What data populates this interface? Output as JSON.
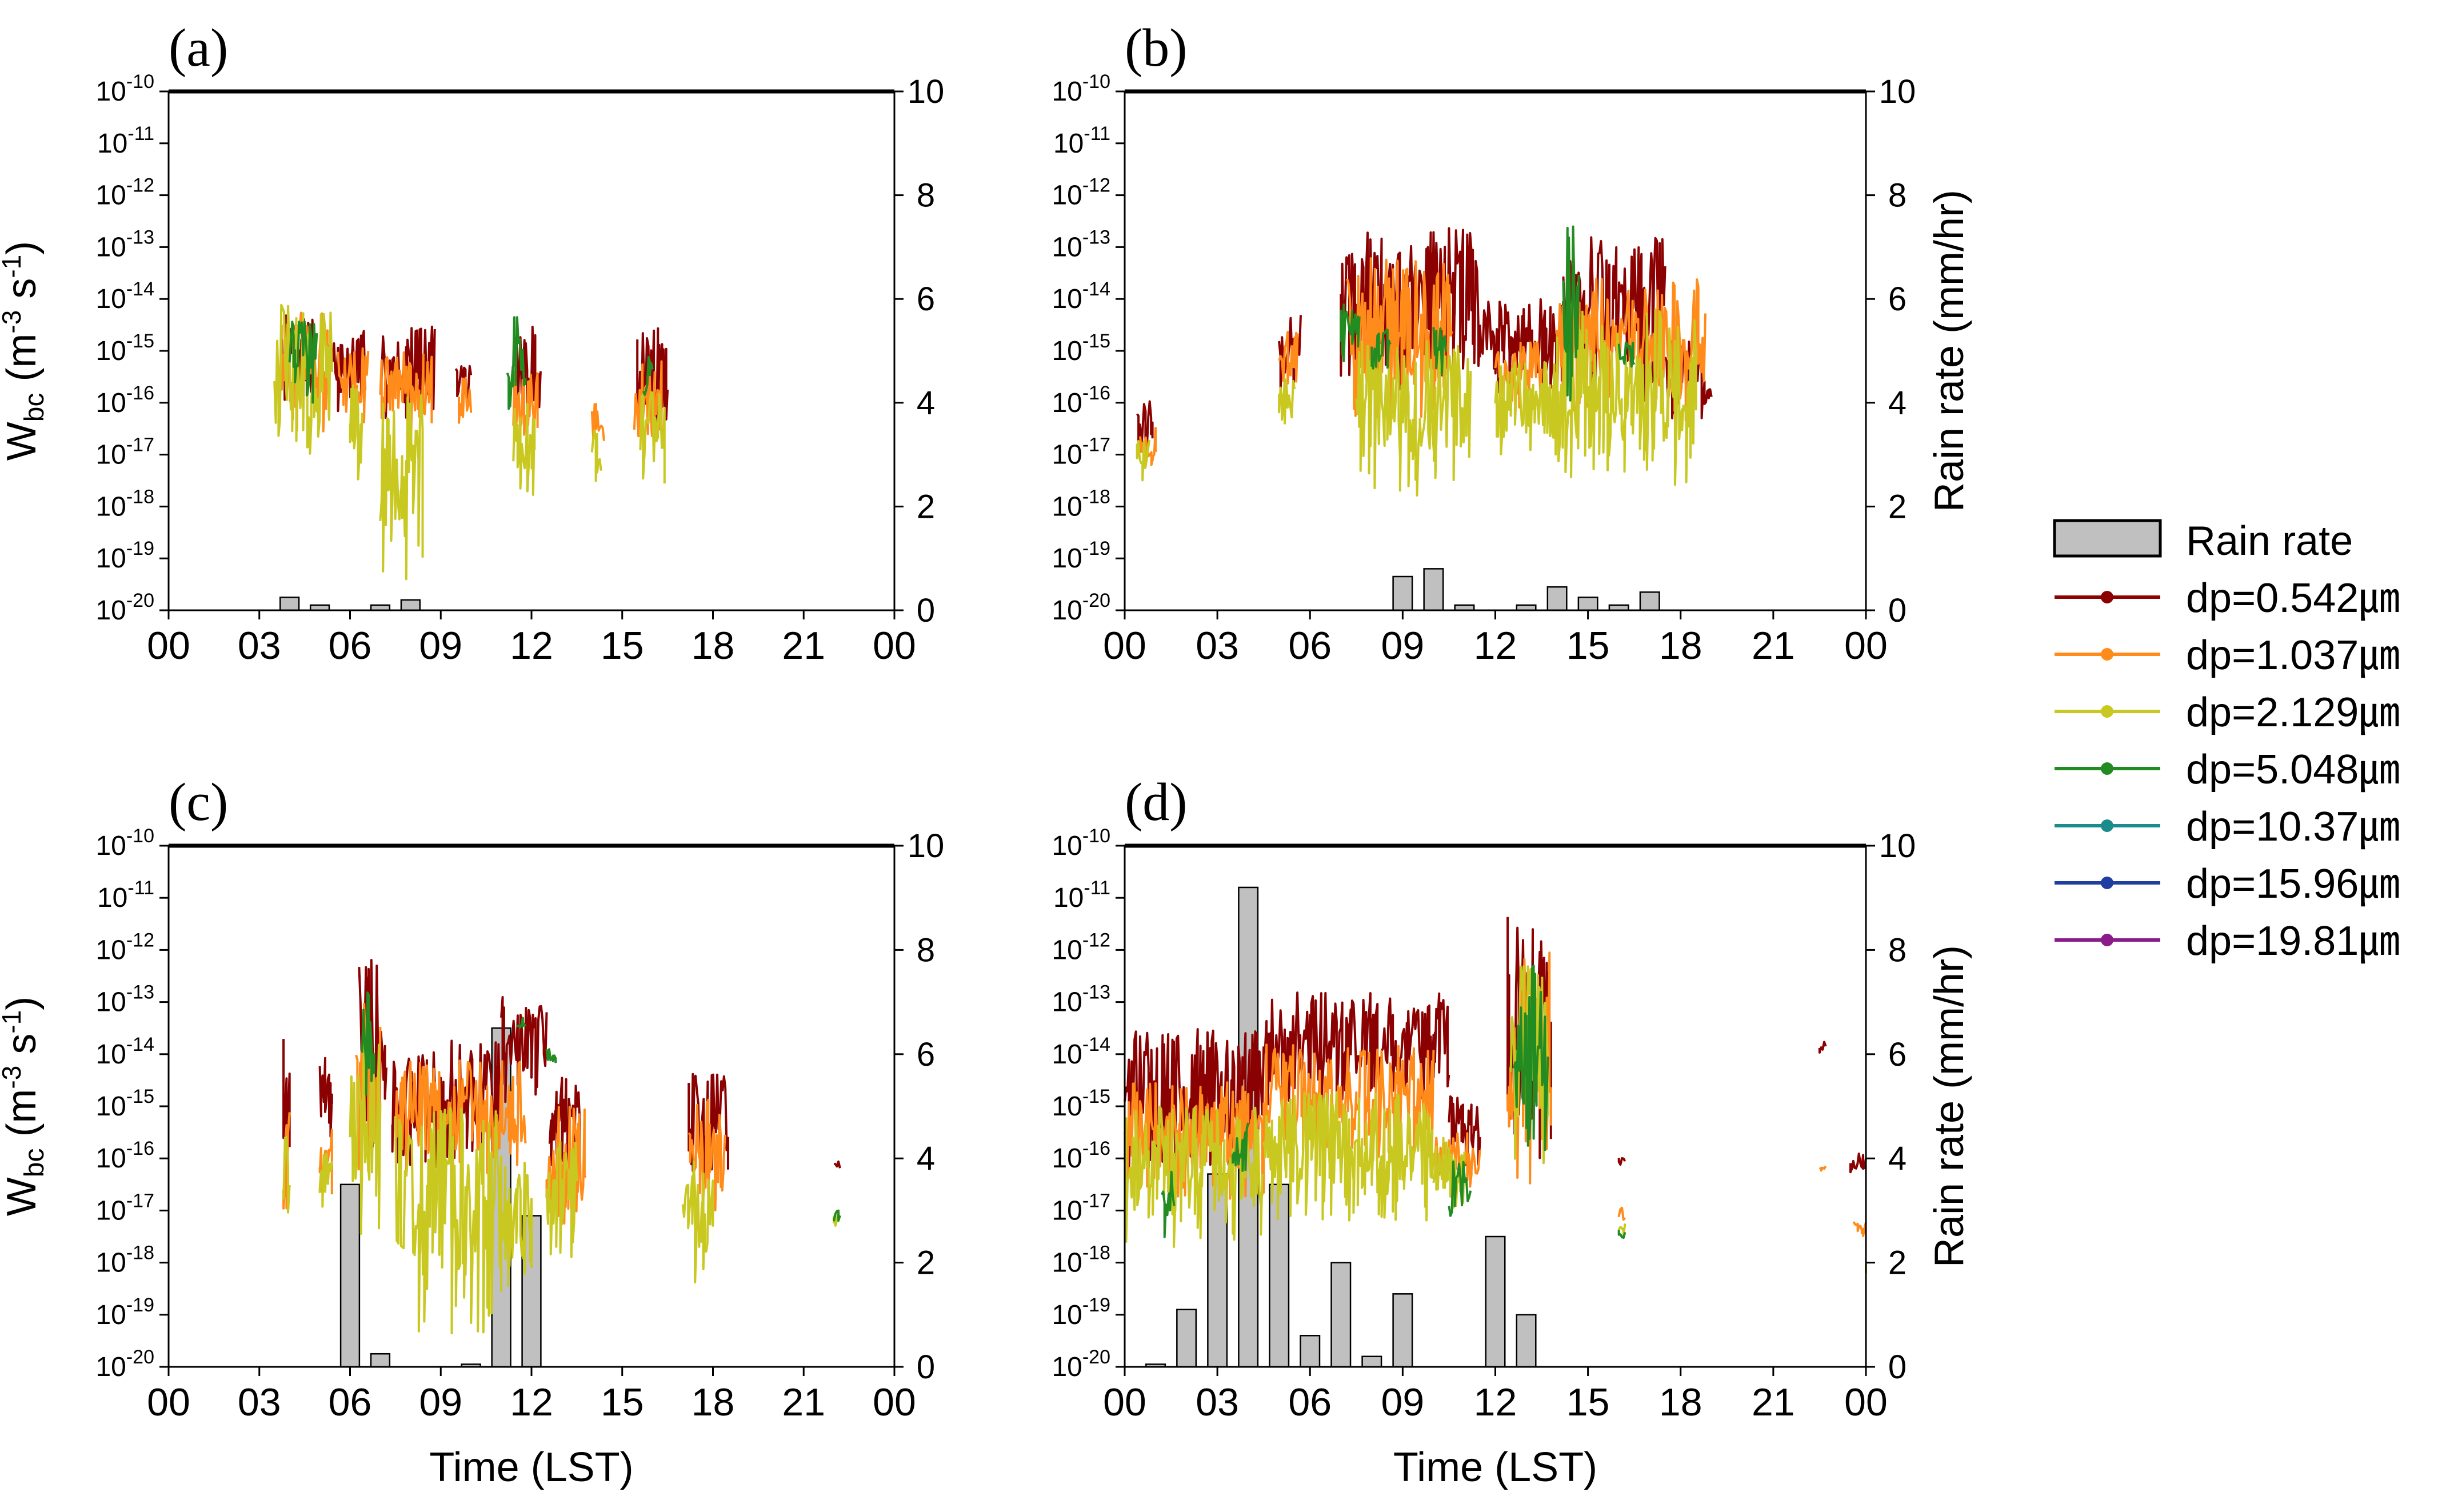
{
  "figure": {
    "legend": [
      {
        "label": "Rain rate",
        "color": "#c0c0c0",
        "kind": "bar"
      },
      {
        "label": "dp=0.542㎛",
        "color": "#8b0000",
        "kind": "line"
      },
      {
        "label": "dp=1.037㎛",
        "color": "#ff8c1a",
        "kind": "line"
      },
      {
        "label": "dp=2.129㎛",
        "color": "#c8c820",
        "kind": "line"
      },
      {
        "label": "dp=5.048㎛",
        "color": "#228b22",
        "kind": "line"
      },
      {
        "label": "dp=10.37㎛",
        "color": "#1a8c8c",
        "kind": "line"
      },
      {
        "label": "dp=15.96㎛",
        "color": "#1f3fa0",
        "kind": "line"
      },
      {
        "label": "dp=19.81㎛",
        "color": "#8b1a8b",
        "kind": "line"
      }
    ]
  },
  "chart_data": [
    {
      "type": "line+bar",
      "panel_label": "(a)",
      "ylabel_left": "W",
      "ylabel_left_sub": "bc",
      "ylabel_left_units": " (m",
      "ylabel_left_sup1": "-3",
      "ylabel_left_mid": " s",
      "ylabel_left_sup2": "-1",
      "ylabel_left_end": ")",
      "ylabel_right": "",
      "xlabel": "",
      "x_ticks": [
        "00",
        "03",
        "06",
        "09",
        "12",
        "15",
        "18",
        "21",
        "00"
      ],
      "y_left_log_range": [
        -20,
        -10
      ],
      "y_left_ticks": [
        "10",
        "10",
        "10",
        "10",
        "10",
        "10",
        "10",
        "10",
        "10",
        "10",
        "10"
      ],
      "y_left_exponents": [
        "-20",
        "-19",
        "-18",
        "-17",
        "-16",
        "-15",
        "-14",
        "-13",
        "-12",
        "-11",
        "-10"
      ],
      "y_right_range": [
        0,
        10
      ],
      "y_right_ticks": [
        "0",
        "2",
        "4",
        "6",
        "8",
        "10"
      ],
      "rain_rate": {
        "hours": [
          4,
          5,
          7,
          8
        ],
        "values": [
          0.25,
          0.1,
          0.1,
          0.2
        ]
      },
      "series": [
        {
          "name": "dp=0.542㎛",
          "segments": [
            [
              3.7,
              4.8,
              -16.0,
              -14.3
            ],
            [
              5.2,
              6.5,
              -16.2,
              -14.6
            ],
            [
              7.0,
              8.8,
              -16.3,
              -14.5
            ],
            [
              9.5,
              10.0,
              -16.2,
              -15.2
            ],
            [
              11.5,
              12.3,
              -16.5,
              -14.5
            ],
            [
              15.5,
              16.5,
              -16.8,
              -14.5
            ]
          ]
        },
        {
          "name": "dp=1.037㎛",
          "segments": [
            [
              3.6,
              5.3,
              -16.6,
              -14.2
            ],
            [
              5.6,
              6.6,
              -16.4,
              -14.9
            ],
            [
              7.0,
              8.7,
              -16.8,
              -15.0
            ],
            [
              9.6,
              10.0,
              -16.5,
              -15.5
            ],
            [
              11.4,
              12.2,
              -16.9,
              -15.4
            ],
            [
              14.0,
              14.4,
              -17.0,
              -16.0
            ],
            [
              15.4,
              16.3,
              -17.2,
              -15.1
            ]
          ]
        },
        {
          "name": "dp=2.129㎛",
          "segments": [
            [
              3.5,
              5.4,
              -17.2,
              -14.0
            ],
            [
              6.0,
              6.4,
              -17.5,
              -15.6
            ],
            [
              7.0,
              8.4,
              -19.5,
              -15.8
            ],
            [
              11.4,
              12.1,
              -17.8,
              -16.0
            ],
            [
              14.0,
              14.3,
              -17.6,
              -16.5
            ],
            [
              15.6,
              16.4,
              -17.6,
              -15.7
            ]
          ]
        },
        {
          "name": "dp=5.048㎛",
          "segments": [
            [
              4.0,
              4.9,
              -16.2,
              -14.4
            ],
            [
              11.2,
              11.8,
              -16.2,
              -14.3
            ],
            [
              15.7,
              16.0,
              -16.1,
              -15.1
            ]
          ]
        }
      ]
    },
    {
      "type": "line+bar",
      "panel_label": "(b)",
      "ylabel_left": "",
      "ylabel_right": "Rain rate (mm/hr)",
      "xlabel": "",
      "x_ticks": [
        "00",
        "03",
        "06",
        "09",
        "12",
        "15",
        "18",
        "21",
        "00"
      ],
      "y_left_log_range": [
        -20,
        -10
      ],
      "y_left_ticks": [
        "10",
        "10",
        "10",
        "10",
        "10",
        "10",
        "10",
        "10",
        "10",
        "10",
        "10"
      ],
      "y_left_exponents": [
        "-20",
        "-19",
        "-18",
        "-17",
        "-16",
        "-15",
        "-14",
        "-13",
        "-12",
        "-11",
        "-10"
      ],
      "y_right_range": [
        0,
        10
      ],
      "y_right_ticks": [
        "0",
        "2",
        "4",
        "6",
        "8",
        "10"
      ],
      "rain_rate": {
        "hours": [
          9,
          10,
          11,
          13,
          14,
          15,
          16,
          17
        ],
        "values": [
          0.65,
          0.8,
          0.1,
          0.1,
          0.45,
          0.25,
          0.1,
          0.35
        ]
      },
      "series": [
        {
          "name": "dp=0.542㎛",
          "segments": [
            [
              0.4,
              0.9,
              -17.0,
              -15.9
            ],
            [
              5.0,
              5.7,
              -15.8,
              -14.3
            ],
            [
              7.0,
              11.5,
              -15.8,
              -12.6
            ],
            [
              11.5,
              14.2,
              -15.8,
              -14.0
            ],
            [
              14.2,
              17.5,
              -16.0,
              -12.8
            ],
            [
              17.5,
              19.0,
              -16.4,
              -14.8
            ]
          ]
        },
        {
          "name": "dp=1.037㎛",
          "segments": [
            [
              0.5,
              1.0,
              -17.4,
              -16.4
            ],
            [
              5.0,
              5.6,
              -16.0,
              -14.6
            ],
            [
              7.2,
              10.6,
              -16.4,
              -13.2
            ],
            [
              12.0,
              13.5,
              -16.2,
              -14.8
            ],
            [
              14.0,
              18.8,
              -16.4,
              -13.6
            ]
          ]
        },
        {
          "name": "dp=2.129㎛",
          "segments": [
            [
              0.4,
              0.8,
              -17.5,
              -16.6
            ],
            [
              5.0,
              5.5,
              -16.6,
              -15.5
            ],
            [
              7.5,
              11.2,
              -17.8,
              -14.8
            ],
            [
              12.0,
              14.0,
              -17.0,
              -15.2
            ],
            [
              14.0,
              18.5,
              -17.6,
              -14.2
            ]
          ]
        },
        {
          "name": "dp=5.048㎛",
          "segments": [
            [
              7.0,
              7.6,
              -15.2,
              -14.0
            ],
            [
              8.0,
              8.6,
              -15.4,
              -14.5
            ],
            [
              10.0,
              10.4,
              -15.6,
              -14.5
            ],
            [
              14.2,
              14.7,
              -16.0,
              -12.6
            ],
            [
              16.0,
              16.5,
              -15.5,
              -14.8
            ]
          ]
        }
      ]
    },
    {
      "type": "line+bar",
      "panel_label": "(c)",
      "ylabel_left": "W",
      "ylabel_left_sub": "bc",
      "ylabel_left_units": " (m",
      "ylabel_left_sup1": "-3",
      "ylabel_left_mid": " s",
      "ylabel_left_sup2": "-1",
      "ylabel_left_end": ")",
      "ylabel_right": "",
      "xlabel": "Time (LST)",
      "x_ticks": [
        "00",
        "03",
        "06",
        "09",
        "12",
        "15",
        "18",
        "21",
        "00"
      ],
      "y_left_log_range": [
        -20,
        -10
      ],
      "y_left_ticks": [
        "10",
        "10",
        "10",
        "10",
        "10",
        "10",
        "10",
        "10",
        "10",
        "10",
        "10"
      ],
      "y_left_exponents": [
        "-20",
        "-19",
        "-18",
        "-17",
        "-16",
        "-15",
        "-14",
        "-13",
        "-12",
        "-11",
        "-10"
      ],
      "y_right_range": [
        0,
        10
      ],
      "y_right_ticks": [
        "0",
        "2",
        "4",
        "6",
        "8",
        "10"
      ],
      "rain_rate": {
        "hours": [
          6,
          7,
          10,
          11,
          12
        ],
        "values": [
          3.5,
          0.25,
          0.05,
          6.5,
          2.9
        ]
      },
      "series": [
        {
          "name": "dp=0.542㎛",
          "segments": [
            [
              3.8,
              4.0,
              -16.3,
              -13.7
            ],
            [
              5.0,
              5.4,
              -15.7,
              -13.9
            ],
            [
              6.3,
              7.2,
              -15.8,
              -12.0
            ],
            [
              7.4,
              11.0,
              -16.2,
              -13.7
            ],
            [
              11.0,
              12.5,
              -15.0,
              -12.9
            ],
            [
              12.6,
              13.6,
              -16.2,
              -14.4
            ],
            [
              17.2,
              18.5,
              -16.8,
              -14.3
            ],
            [
              22.0,
              22.2,
              -16.3,
              -16.0
            ]
          ]
        },
        {
          "name": "dp=1.037㎛",
          "segments": [
            [
              3.8,
              4.0,
              -17.2,
              -15.1
            ],
            [
              5.0,
              5.4,
              -16.7,
              -15.4
            ],
            [
              6.2,
              7.0,
              -16.5,
              -12.8
            ],
            [
              7.5,
              11.8,
              -16.4,
              -14.1
            ],
            [
              12.5,
              13.8,
              -17.4,
              -15.0
            ],
            [
              17.2,
              18.4,
              -17.2,
              -14.8
            ]
          ]
        },
        {
          "name": "dp=2.129㎛",
          "segments": [
            [
              3.8,
              4.0,
              -17.4,
              -15.5
            ],
            [
              5.0,
              5.4,
              -17.0,
              -15.9
            ],
            [
              6.0,
              7.0,
              -17.5,
              -13.8
            ],
            [
              7.5,
              11.0,
              -19.4,
              -15.0
            ],
            [
              11.0,
              12.0,
              -18.5,
              -16.0
            ],
            [
              12.5,
              13.5,
              -17.9,
              -15.6
            ],
            [
              17.0,
              18.0,
              -18.4,
              -16.0
            ],
            [
              22.0,
              22.2,
              -17.3,
              -17.0
            ]
          ]
        },
        {
          "name": "dp=5.048㎛",
          "segments": [
            [
              6.4,
              6.8,
              -14.8,
              -12.5
            ],
            [
              11.5,
              11.8,
              -13.6,
              -13.3
            ],
            [
              12.5,
              12.8,
              -14.2,
              -13.9
            ],
            [
              22.0,
              22.2,
              -17.2,
              -17.0
            ]
          ]
        }
      ]
    },
    {
      "type": "line+bar",
      "panel_label": "(d)",
      "ylabel_left": "",
      "ylabel_right": "Rain rate (mm/hr)",
      "xlabel": "Time (LST)",
      "x_ticks": [
        "00",
        "03",
        "06",
        "09",
        "12",
        "15",
        "18",
        "21",
        "00"
      ],
      "y_left_log_range": [
        -20,
        -10
      ],
      "y_left_ticks": [
        "10",
        "10",
        "10",
        "10",
        "10",
        "10",
        "10",
        "10",
        "10",
        "10",
        "10"
      ],
      "y_left_exponents": [
        "-20",
        "-19",
        "-18",
        "-17",
        "-16",
        "-15",
        "-14",
        "-13",
        "-12",
        "-11",
        "-10"
      ],
      "y_right_range": [
        0,
        10
      ],
      "y_right_ticks": [
        "0",
        "2",
        "4",
        "6",
        "8",
        "10"
      ],
      "rain_rate": {
        "hours": [
          1,
          2,
          3,
          4,
          5,
          6,
          7,
          8,
          9,
          12,
          13
        ],
        "values": [
          0.05,
          1.1,
          3.7,
          9.2,
          3.5,
          0.6,
          2.0,
          0.2,
          1.4,
          2.5,
          1.0
        ]
      },
      "series": [
        {
          "name": "dp=0.542㎛",
          "segments": [
            [
              0.0,
              4.5,
              -16.5,
              -13.5
            ],
            [
              4.5,
              10.5,
              -15.0,
              -12.8
            ],
            [
              10.5,
              11.5,
              -16.2,
              -14.8
            ],
            [
              12.4,
              13.8,
              -16.0,
              -11.3
            ],
            [
              16.0,
              16.2,
              -16.2,
              -15.9
            ],
            [
              22.5,
              22.7,
              -14.0,
              -13.7
            ],
            [
              23.5,
              24.0,
              -16.3,
              -15.9
            ]
          ]
        },
        {
          "name": "dp=1.037㎛",
          "segments": [
            [
              0.0,
              4.5,
              -16.8,
              -14.5
            ],
            [
              4.5,
              10.0,
              -16.0,
              -13.8
            ],
            [
              10.0,
              11.5,
              -16.6,
              -15.5
            ],
            [
              12.4,
              13.8,
              -16.5,
              -12.0
            ],
            [
              16.0,
              16.2,
              -17.3,
              -16.9
            ],
            [
              22.5,
              22.7,
              -16.3,
              -16.0
            ],
            [
              23.6,
              24.0,
              -17.5,
              -17.2
            ]
          ]
        },
        {
          "name": "dp=2.129㎛",
          "segments": [
            [
              0.0,
              4.5,
              -17.7,
              -15.0
            ],
            [
              4.5,
              10.0,
              -17.2,
              -14.7
            ],
            [
              10.0,
              11.0,
              -17.0,
              -15.6
            ],
            [
              12.5,
              13.7,
              -16.2,
              -12.3
            ],
            [
              16.0,
              16.2,
              -17.5,
              -17.2
            ],
            [
              24.0,
              24.0,
              -18.2,
              -18.0
            ]
          ]
        },
        {
          "name": "dp=5.048㎛",
          "segments": [
            [
              1.2,
              1.6,
              -17.6,
              -16.2
            ],
            [
              3.5,
              4.0,
              -16.5,
              -15.3
            ],
            [
              10.5,
              11.2,
              -17.6,
              -16.0
            ],
            [
              12.6,
              13.7,
              -16.2,
              -12.3
            ],
            [
              16.0,
              16.2,
              -17.6,
              -17.3
            ]
          ]
        }
      ]
    }
  ]
}
